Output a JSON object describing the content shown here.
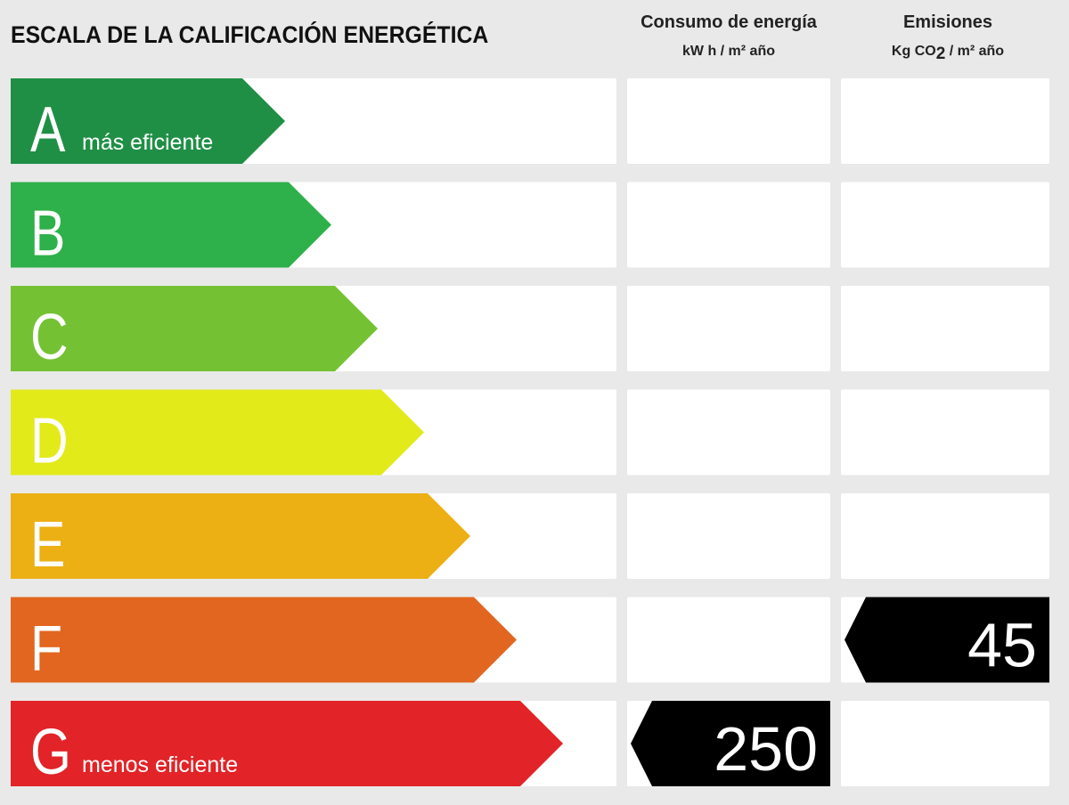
{
  "title": "ESCALA DE LA CALIFICACIÓN ENERGÉTICA",
  "columns": {
    "consumption": {
      "heading": "Consumo de energía",
      "unit": "kW h / m² año"
    },
    "emissions": {
      "heading": "Emisiones",
      "unit_pre": "Kg CO",
      "unit_sub": "2",
      "unit_post": " / m²  año"
    }
  },
  "classes": [
    {
      "letter": "A",
      "note": "más eficiente",
      "color": "#1f8f45"
    },
    {
      "letter": "B",
      "note": "",
      "color": "#2eb04a"
    },
    {
      "letter": "C",
      "note": "",
      "color": "#74c233"
    },
    {
      "letter": "D",
      "note": "",
      "color": "#e2ea1a"
    },
    {
      "letter": "E",
      "note": "",
      "color": "#ecb015"
    },
    {
      "letter": "F",
      "note": "",
      "color": "#e2661f"
    },
    {
      "letter": "G",
      "note": "menos eficiente",
      "color": "#e22327"
    }
  ],
  "ratings": {
    "consumption": {
      "value": "250",
      "class": "G"
    },
    "emissions": {
      "value": "45",
      "class": "F"
    }
  },
  "indicator_color": "#000000",
  "box_color": "#ffffff"
}
